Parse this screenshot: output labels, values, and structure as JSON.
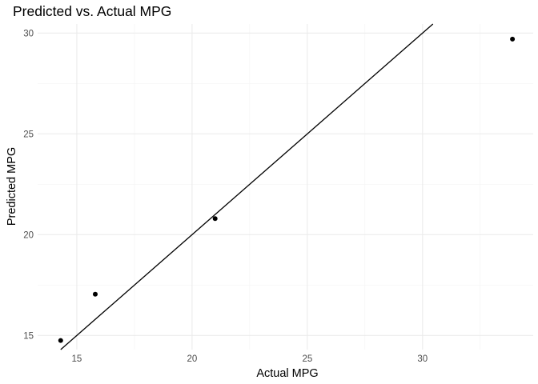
{
  "chart_data": {
    "type": "scatter",
    "title": "Predicted vs. Actual MPG",
    "xlabel": "Actual MPG",
    "ylabel": "Predicted MPG",
    "xlim": [
      13.3,
      34.8
    ],
    "ylim": [
      14.3,
      30.45
    ],
    "x_ticks": [
      15,
      20,
      25,
      30
    ],
    "y_ticks": [
      15,
      20,
      25,
      30
    ],
    "grid": true,
    "points": [
      {
        "x": 14.3,
        "y": 14.75
      },
      {
        "x": 15.8,
        "y": 17.05
      },
      {
        "x": 21.0,
        "y": 20.8
      },
      {
        "x": 33.9,
        "y": 29.7
      }
    ],
    "reference_line": {
      "intercept": 0,
      "slope": 1,
      "color": "#000000"
    },
    "colors": {
      "points": "#000000",
      "grid": "#ebebeb",
      "tick_text": "#4d4d4d"
    }
  }
}
